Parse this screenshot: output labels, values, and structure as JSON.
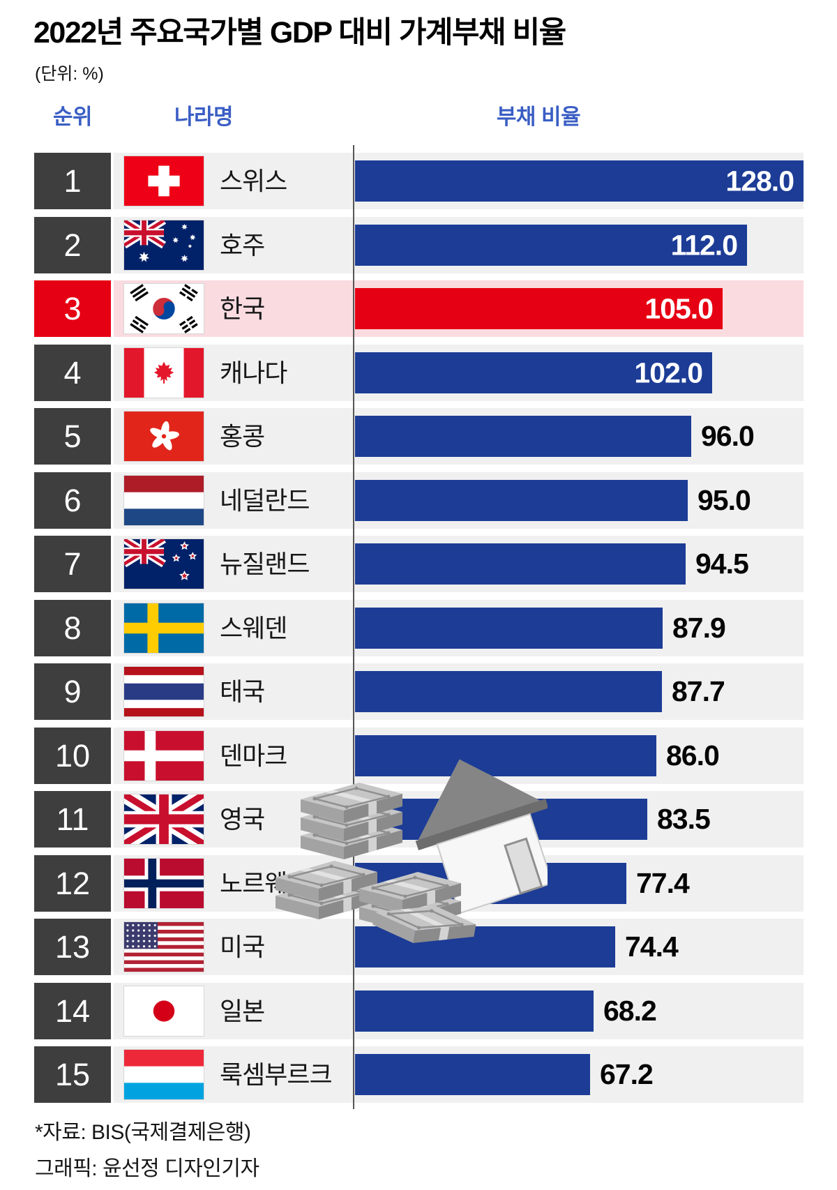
{
  "title": "2022년 주요국가별 GDP 대비 가계부채 비율",
  "unit_label": "(단위: %)",
  "columns": {
    "rank": "순위",
    "country": "나라명",
    "ratio": "부채 비율"
  },
  "chart_data": {
    "type": "bar",
    "orientation": "horizontal",
    "title": "2022년 주요국가별 GDP 대비 가계부채 비율",
    "unit": "%",
    "xlim": [
      0,
      135
    ],
    "categories": [
      "스위스",
      "호주",
      "한국",
      "캐나다",
      "홍콩",
      "네덜란드",
      "뉴질랜드",
      "스웨덴",
      "태국",
      "덴마크",
      "영국",
      "노르웨이",
      "미국",
      "일본",
      "룩셈부르크"
    ],
    "values": [
      128.0,
      112.0,
      105.0,
      102.0,
      96.0,
      95.0,
      94.5,
      87.9,
      87.7,
      86.0,
      83.5,
      77.4,
      74.4,
      68.2,
      67.2
    ],
    "ranks": [
      1,
      2,
      3,
      4,
      5,
      6,
      7,
      8,
      9,
      10,
      11,
      12,
      13,
      14,
      15
    ],
    "flags": [
      "switzerland",
      "australia",
      "south-korea",
      "canada",
      "hong-kong",
      "netherlands",
      "new-zealand",
      "sweden",
      "thailand",
      "denmark",
      "united-kingdom",
      "norway",
      "united-states",
      "japan",
      "luxembourg"
    ],
    "highlight_index": 2,
    "legend": "none",
    "grid": "off"
  },
  "colors": {
    "bar_blue": "#1c3c96",
    "bar_red": "#e60013",
    "rank_bg": "#3e3e3e",
    "rank_highlight_bg": "#e60013",
    "row_bg": "#f0f0f0",
    "row_highlight_bg": "#f9dbe0",
    "header_text": "#3a5ec4"
  },
  "footer": {
    "source": "*자료: BIS(국제결제은행)",
    "credit": "그래픽: 윤선정 디자인기자"
  }
}
